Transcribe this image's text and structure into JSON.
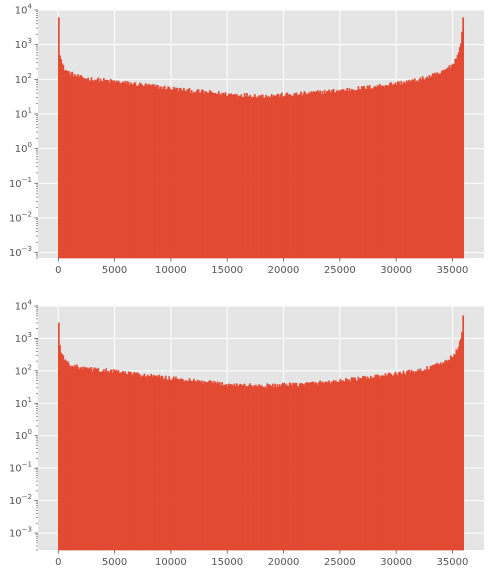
{
  "chart_data": [
    {
      "type": "histogram",
      "title": "",
      "xlabel": "",
      "ylabel": "",
      "xlim": [
        -1800,
        37800
      ],
      "ylim": [
        0.0007,
        10000
      ],
      "yscale": "log",
      "grid": true,
      "color": "#e24a33",
      "background": "#e5e5e5",
      "x_ticks": [
        0,
        5000,
        10000,
        15000,
        20000,
        25000,
        30000,
        35000
      ],
      "x_tick_labels": [
        "0",
        "5000",
        "10000",
        "15000",
        "20000",
        "25000",
        "30000",
        "35000"
      ],
      "y_ticks": [
        0.001,
        0.01,
        0.1,
        1,
        10,
        100,
        1000,
        10000
      ],
      "y_tick_labels": [
        {
          "base": "10",
          "exp": "−3"
        },
        {
          "base": "10",
          "exp": "−2"
        },
        {
          "base": "10",
          "exp": "−1"
        },
        {
          "base": "10",
          "exp": "0"
        },
        {
          "base": "10",
          "exp": "1"
        },
        {
          "base": "10",
          "exp": "2"
        },
        {
          "base": "10",
          "exp": "3"
        },
        {
          "base": "10",
          "exp": "4"
        }
      ],
      "bin_range": [
        0,
        36000
      ],
      "bin_count": 360,
      "profile_x": [
        0,
        100,
        300,
        500,
        1000,
        2000,
        3000,
        5000,
        8000,
        12000,
        15000,
        18000,
        21000,
        24000,
        27000,
        30000,
        32000,
        34000,
        35000,
        35500,
        35800,
        36000
      ],
      "profile_y": [
        6000,
        700,
        300,
        200,
        150,
        110,
        100,
        85,
        65,
        45,
        37,
        33,
        36,
        44,
        55,
        75,
        95,
        150,
        260,
        500,
        1500,
        6000
      ]
    },
    {
      "type": "histogram",
      "title": "",
      "xlabel": "",
      "ylabel": "",
      "xlim": [
        -1800,
        37800
      ],
      "ylim": [
        0.0003,
        10000
      ],
      "yscale": "log",
      "grid": true,
      "color": "#e24a33",
      "background": "#e5e5e5",
      "x_ticks": [
        0,
        5000,
        10000,
        15000,
        20000,
        25000,
        30000,
        35000
      ],
      "x_tick_labels": [
        "0",
        "5000",
        "10000",
        "15000",
        "20000",
        "25000",
        "30000",
        "35000"
      ],
      "y_ticks": [
        0.001,
        0.01,
        0.1,
        1,
        10,
        100,
        1000,
        10000
      ],
      "y_tick_labels": [
        {
          "base": "10",
          "exp": "−3"
        },
        {
          "base": "10",
          "exp": "−2"
        },
        {
          "base": "10",
          "exp": "−1"
        },
        {
          "base": "10",
          "exp": "0"
        },
        {
          "base": "10",
          "exp": "1"
        },
        {
          "base": "10",
          "exp": "2"
        },
        {
          "base": "10",
          "exp": "3"
        },
        {
          "base": "10",
          "exp": "4"
        }
      ],
      "bin_range": [
        0,
        36000
      ],
      "bin_count": 360,
      "profile_x": [
        0,
        100,
        300,
        500,
        1000,
        2000,
        3000,
        5000,
        8000,
        12000,
        15000,
        18000,
        21000,
        24000,
        27000,
        30000,
        32000,
        34000,
        35000,
        35500,
        35800,
        36000
      ],
      "profile_y": [
        3000,
        700,
        350,
        230,
        160,
        120,
        110,
        95,
        70,
        48,
        38,
        34,
        37,
        45,
        58,
        80,
        100,
        160,
        270,
        450,
        1200,
        5000
      ]
    }
  ]
}
